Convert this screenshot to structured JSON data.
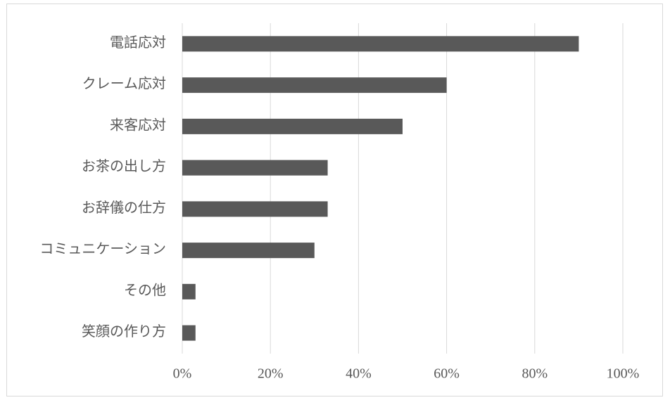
{
  "chart_data": {
    "type": "bar",
    "categories": [
      "電話応対",
      "クレーム応対",
      "来客応対",
      "お茶の出し方",
      "お辞儀の仕方",
      "コミュニケーション",
      "その他",
      "笑顔の作り方"
    ],
    "values": [
      90,
      60,
      50,
      33,
      33,
      30,
      3,
      3
    ],
    "color": "#595959",
    "xlim": [
      0,
      100
    ],
    "xticks": [
      {
        "value": 0,
        "label": "0%"
      },
      {
        "value": 20,
        "label": "20%"
      },
      {
        "value": 40,
        "label": "40%"
      },
      {
        "value": 60,
        "label": "60%"
      },
      {
        "value": 80,
        "label": "80%"
      },
      {
        "value": 100,
        "label": "100%"
      }
    ],
    "grid": true
  }
}
